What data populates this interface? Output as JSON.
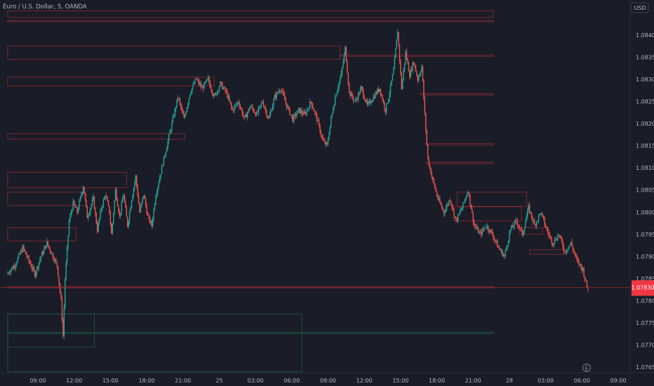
{
  "chart_data": {
    "type": "candlestick",
    "title": "Euro / U.S. Dollar, 5, OANDA",
    "currency": "USD",
    "y_ticks": [
      "1.08400",
      "1.08350",
      "1.08300",
      "1.08250",
      "1.08200",
      "1.08150",
      "1.08100",
      "1.08050",
      "1.08000",
      "1.07950",
      "1.07900",
      "1.07850",
      "1.07800",
      "1.07750",
      "1.07700",
      "1.07650"
    ],
    "ylim": [
      1.0762,
      1.0846
    ],
    "x_ticks": [
      {
        "label": "09:00",
        "t": 0
      },
      {
        "label": "12:00",
        "t": 36
      },
      {
        "label": "15:00",
        "t": 72
      },
      {
        "label": "18:00",
        "t": 108
      },
      {
        "label": "21:00",
        "t": 144
      },
      {
        "label": "25",
        "t": 180
      },
      {
        "label": "03:00",
        "t": 216
      },
      {
        "label": "06:00",
        "t": 252
      },
      {
        "label": "09:00",
        "t": 288
      },
      {
        "label": "12:00",
        "t": 324
      },
      {
        "label": "15:00",
        "t": 360
      },
      {
        "label": "18:00",
        "t": 396
      },
      {
        "label": "21:00",
        "t": 432
      },
      {
        "label": "28",
        "t": 468
      },
      {
        "label": "03:00",
        "t": 504
      },
      {
        "label": "06:00",
        "t": 540
      },
      {
        "label": "09:00",
        "t": 576
      }
    ],
    "price_path": [
      [
        -30,
        1.0786
      ],
      [
        -22,
        1.0788
      ],
      [
        -14,
        1.0792
      ],
      [
        -8,
        1.0789
      ],
      [
        -2,
        1.0786
      ],
      [
        4,
        1.079
      ],
      [
        10,
        1.0793
      ],
      [
        16,
        1.079
      ],
      [
        20,
        1.0788
      ],
      [
        24,
        1.078
      ],
      [
        26,
        1.0772
      ],
      [
        28,
        1.0785
      ],
      [
        32,
        1.0798
      ],
      [
        36,
        1.0802
      ],
      [
        40,
        1.08
      ],
      [
        46,
        1.0806
      ],
      [
        50,
        1.0799
      ],
      [
        56,
        1.0803
      ],
      [
        60,
        1.0796
      ],
      [
        64,
        1.0801
      ],
      [
        68,
        1.0804
      ],
      [
        72,
        1.08
      ],
      [
        74,
        1.0795
      ],
      [
        78,
        1.0805
      ],
      [
        82,
        1.0799
      ],
      [
        86,
        1.0804
      ],
      [
        90,
        1.0797
      ],
      [
        94,
        1.0803
      ],
      [
        98,
        1.0808
      ],
      [
        102,
        1.08
      ],
      [
        106,
        1.0804
      ],
      [
        110,
        1.0799
      ],
      [
        114,
        1.0797
      ],
      [
        118,
        1.0804
      ],
      [
        122,
        1.0808
      ],
      [
        128,
        1.0814
      ],
      [
        134,
        1.082
      ],
      [
        140,
        1.0826
      ],
      [
        146,
        1.0821
      ],
      [
        152,
        1.0827
      ],
      [
        158,
        1.083
      ],
      [
        164,
        1.0828
      ],
      [
        170,
        1.083
      ],
      [
        176,
        1.0826
      ],
      [
        182,
        1.0829
      ],
      [
        188,
        1.0827
      ],
      [
        194,
        1.0823
      ],
      [
        200,
        1.0825
      ],
      [
        206,
        1.0821
      ],
      [
        212,
        1.0824
      ],
      [
        218,
        1.0822
      ],
      [
        224,
        1.0825
      ],
      [
        230,
        1.0821
      ],
      [
        236,
        1.0826
      ],
      [
        242,
        1.0828
      ],
      [
        248,
        1.0824
      ],
      [
        254,
        1.0821
      ],
      [
        260,
        1.0823
      ],
      [
        266,
        1.0822
      ],
      [
        272,
        1.0825
      ],
      [
        278,
        1.0821
      ],
      [
        284,
        1.0816
      ],
      [
        288,
        1.0815
      ],
      [
        292,
        1.0821
      ],
      [
        296,
        1.0826
      ],
      [
        302,
        1.0831
      ],
      [
        306,
        1.0837
      ],
      [
        310,
        1.0827
      ],
      [
        316,
        1.0825
      ],
      [
        322,
        1.0828
      ],
      [
        328,
        1.0824
      ],
      [
        334,
        1.0826
      ],
      [
        340,
        1.0828
      ],
      [
        346,
        1.0823
      ],
      [
        350,
        1.0827
      ],
      [
        354,
        1.0832
      ],
      [
        358,
        1.0841
      ],
      [
        362,
        1.0828
      ],
      [
        366,
        1.0836
      ],
      [
        370,
        1.0831
      ],
      [
        374,
        1.0834
      ],
      [
        378,
        1.083
      ],
      [
        382,
        1.0833
      ],
      [
        385,
        1.0822
      ],
      [
        388,
        1.0812
      ],
      [
        392,
        1.0808
      ],
      [
        398,
        1.0803
      ],
      [
        404,
        1.08
      ],
      [
        410,
        1.0803
      ],
      [
        416,
        1.0798
      ],
      [
        422,
        1.0801
      ],
      [
        428,
        1.0805
      ],
      [
        434,
        1.0797
      ],
      [
        440,
        1.0795
      ],
      [
        446,
        1.0797
      ],
      [
        452,
        1.0795
      ],
      [
        458,
        1.0792
      ],
      [
        464,
        1.079
      ],
      [
        470,
        1.0796
      ],
      [
        476,
        1.0798
      ],
      [
        482,
        1.0795
      ],
      [
        488,
        1.0801
      ],
      [
        494,
        1.0797
      ],
      [
        500,
        1.08
      ],
      [
        506,
        1.0796
      ],
      [
        512,
        1.0793
      ],
      [
        518,
        1.0795
      ],
      [
        524,
        1.0791
      ],
      [
        530,
        1.0793
      ],
      [
        536,
        1.0789
      ],
      [
        542,
        1.0787
      ],
      [
        546,
        1.0783
      ]
    ],
    "current_price": 1.0783,
    "current_price_label": "1.07830",
    "supply_zones": [
      {
        "t0": -30,
        "t1": 452,
        "y0": 1.08455,
        "y1": 1.0844
      },
      {
        "t0": -30,
        "t1": 452,
        "y0": 1.08433,
        "y1": 1.0843
      },
      {
        "t0": -30,
        "t1": 300,
        "y0": 1.08375,
        "y1": 1.08345
      },
      {
        "t0": 300,
        "t1": 452,
        "y0": 1.08355,
        "y1": 1.08352
      },
      {
        "t0": -30,
        "t1": 175,
        "y0": 1.08305,
        "y1": 1.08285
      },
      {
        "t0": 380,
        "t1": 452,
        "y0": 1.08268,
        "y1": 1.08265
      },
      {
        "t0": -30,
        "t1": 146,
        "y0": 1.08177,
        "y1": 1.08165
      },
      {
        "t0": 385,
        "t1": 452,
        "y0": 1.08155,
        "y1": 1.08152
      },
      {
        "t0": 385,
        "t1": 452,
        "y0": 1.08113,
        "y1": 1.0811
      },
      {
        "t0": -30,
        "t1": 88,
        "y0": 1.0809,
        "y1": 1.08055
      },
      {
        "t0": -30,
        "t1": 48,
        "y0": 1.08045,
        "y1": 1.08015
      },
      {
        "t0": 416,
        "t1": 485,
        "y0": 1.08045,
        "y1": 1.08013
      },
      {
        "t0": 413,
        "t1": 480,
        "y0": 1.08012,
        "y1": 1.0798
      },
      {
        "t0": -30,
        "t1": 38,
        "y0": 1.07965,
        "y1": 1.07935
      },
      {
        "t0": 478,
        "t1": 501,
        "y0": 1.07965,
        "y1": 1.0795
      },
      {
        "t0": 488,
        "t1": 524,
        "y0": 1.07915,
        "y1": 1.07905
      },
      {
        "t0": -30,
        "t1": 452,
        "y0": 1.07832,
        "y1": 1.07829
      }
    ],
    "demand_zones": [
      {
        "t0": -30,
        "t1": 262,
        "y0": 1.0777,
        "y1": 1.0764
      },
      {
        "t0": -30,
        "t1": 452,
        "y0": 1.07728,
        "y1": 1.07726
      },
      {
        "t0": -30,
        "t1": 56,
        "y0": 1.0777,
        "y1": 1.07695
      }
    ],
    "colors": {
      "up": "#26a69a",
      "down": "#ef5350",
      "zone_red": "#8c2a33",
      "zone_green": "#1f5a45",
      "bg": "#1a1d27",
      "text": "#b2b5be",
      "price_tag": "#f23645"
    }
  }
}
